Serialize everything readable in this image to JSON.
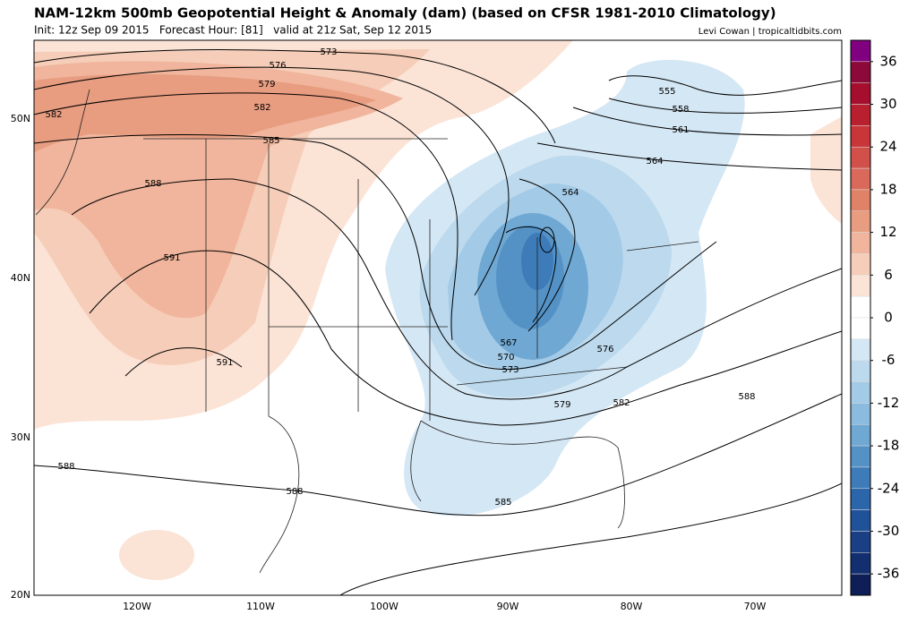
{
  "header": {
    "title": "NAM-12km 500mb Geopotential Height & Anomaly (dam) (based on CFSR 1981-2010 Climatology)",
    "subtitle": "Init: 12z Sep 09 2015   Forecast Hour: [81]   valid at 21z Sat, Sep 12 2015",
    "credit": "Levi Cowan | tropicaltidbits.com"
  },
  "map": {
    "lat_labels": [
      "50N",
      "40N",
      "30N",
      "20N"
    ],
    "lon_labels": [
      "120W",
      "110W",
      "100W",
      "90W",
      "80W",
      "70W"
    ],
    "contour_labels": [
      "573",
      "576",
      "579",
      "582",
      "582",
      "585",
      "588",
      "591",
      "591",
      "588",
      "588",
      "555",
      "558",
      "561",
      "564",
      "564",
      "567",
      "570",
      "573",
      "576",
      "579",
      "582",
      "585",
      "588"
    ]
  },
  "colorbar": {
    "lim": [
      -39,
      39
    ],
    "ticks": [
      36,
      30,
      24,
      18,
      12,
      6,
      0,
      -6,
      -12,
      -18,
      -24,
      -30,
      -36
    ],
    "colors": [
      "#800080",
      "#8b0a3a",
      "#a50f2d",
      "#b8202f",
      "#c8363a",
      "#d2504a",
      "#d9695a",
      "#e08268",
      "#e89c80",
      "#f0b59c",
      "#f6cdb8",
      "#fbe3d6",
      "#ffffff",
      "#ffffff",
      "#d4e7f4",
      "#bcd9ed",
      "#a3cae6",
      "#8bbcdf",
      "#6fa8d3",
      "#5492c6",
      "#3d7cb9",
      "#2c66aa",
      "#20529a",
      "#1a3f85",
      "#142f70",
      "#0e1f58"
    ]
  }
}
